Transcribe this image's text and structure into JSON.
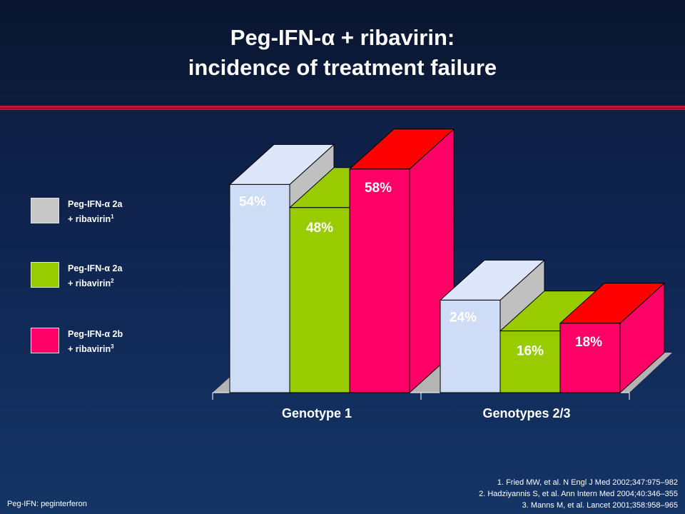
{
  "title": {
    "line1": "Peg-IFN-α + ribavirin:",
    "line2": "incidence of treatment failure"
  },
  "legend": [
    {
      "name": "Peg-IFN-α 2a",
      "line2": "+ ribavirin",
      "sup": "1",
      "color": "#c8c8c8"
    },
    {
      "name": "Peg-IFN-α 2a",
      "line2": "+ ribavirin",
      "sup": "2",
      "color": "#99cc00"
    },
    {
      "name": "Peg-IFN-α 2b",
      "line2": "+ ribavirin",
      "sup": "3",
      "color": "#ff0066"
    }
  ],
  "chart_data": {
    "type": "bar",
    "categories": [
      "Genotype 1",
      "Genotypes 2/3"
    ],
    "series": [
      {
        "name": "Peg-IFN-α 2a + ribavirin 1",
        "values": [
          54,
          24
        ],
        "labels": [
          "54%",
          "24%"
        ],
        "front": "#cfdcf6",
        "top": "#dde6fa",
        "side": "#c0c0c0"
      },
      {
        "name": "Peg-IFN-α 2a + ribavirin 2",
        "values": [
          48,
          16
        ],
        "labels": [
          "48%",
          "16%"
        ],
        "front": "#99cc00",
        "top": "#99cc00",
        "side": "#86b400"
      },
      {
        "name": "Peg-IFN-α 2b + ribavirin 3",
        "values": [
          58,
          18
        ],
        "labels": [
          "58%",
          "18%"
        ],
        "front": "#ff0066",
        "top": "#ff0000",
        "side": "#ff0066"
      }
    ],
    "ylim": [
      0,
      60
    ],
    "grid": false,
    "legend_position": "left"
  },
  "footnote": "Peg-IFN: peginterferon",
  "references": [
    "1. Fried MW, et al. N Engl J Med 2002;347:975–982",
    "2. Hadziyannis S, et al. Ann Intern Med 2004;40:346–355",
    "3. Manns M, et al. Lancet 2001;358:958–965"
  ]
}
